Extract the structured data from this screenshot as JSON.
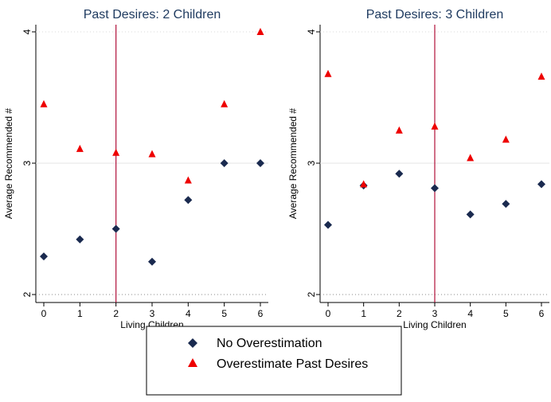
{
  "colors": {
    "series_no_over": "#1a2a4f",
    "series_over": "#ee0000",
    "reference_line": "#b0103a",
    "title": "#1f3b60",
    "grid": "#e5e5e5",
    "axis": "#000000"
  },
  "legend": {
    "position": "bottom-center",
    "items": [
      {
        "label": "No Overestimation",
        "marker": "diamond"
      },
      {
        "label": "Overestimate Past Desires",
        "marker": "triangle"
      }
    ]
  },
  "chart_data": [
    {
      "type": "scatter",
      "title": "Past Desires: 2 Children",
      "xlabel": "Living Children",
      "ylabel": "Average Recommended #",
      "xlim": [
        0,
        6
      ],
      "ylim": [
        2,
        4
      ],
      "xticks": [
        "0",
        "1",
        "2",
        "3",
        "4",
        "5",
        "6"
      ],
      "yticks": [
        "2",
        "3",
        "4"
      ],
      "grid": true,
      "reference_x": 2,
      "x": [
        0,
        1,
        2,
        3,
        4,
        5,
        6
      ],
      "series": [
        {
          "name": "No Overestimation",
          "marker": "diamond",
          "values": [
            2.29,
            2.42,
            2.5,
            2.25,
            2.72,
            3.0,
            3.0
          ]
        },
        {
          "name": "Overestimate Past Desires",
          "marker": "triangle",
          "values": [
            3.45,
            3.11,
            3.08,
            3.07,
            2.87,
            3.45,
            4.0
          ]
        }
      ]
    },
    {
      "type": "scatter",
      "title": "Past Desires: 3 Children",
      "xlabel": "Living Children",
      "ylabel": "Average Recommended #",
      "xlim": [
        0,
        6
      ],
      "ylim": [
        2,
        4
      ],
      "xticks": [
        "0",
        "1",
        "2",
        "3",
        "4",
        "5",
        "6"
      ],
      "yticks": [
        "2",
        "3",
        "4"
      ],
      "grid": true,
      "reference_x": 3,
      "x": [
        0,
        1,
        2,
        3,
        4,
        5,
        6
      ],
      "series": [
        {
          "name": "No Overestimation",
          "marker": "diamond",
          "values": [
            2.53,
            2.83,
            2.92,
            2.81,
            2.61,
            2.69,
            2.84
          ]
        },
        {
          "name": "Overestimate Past Desires",
          "marker": "triangle",
          "values": [
            3.68,
            2.84,
            3.25,
            3.28,
            3.04,
            3.18,
            3.66
          ]
        }
      ]
    }
  ]
}
